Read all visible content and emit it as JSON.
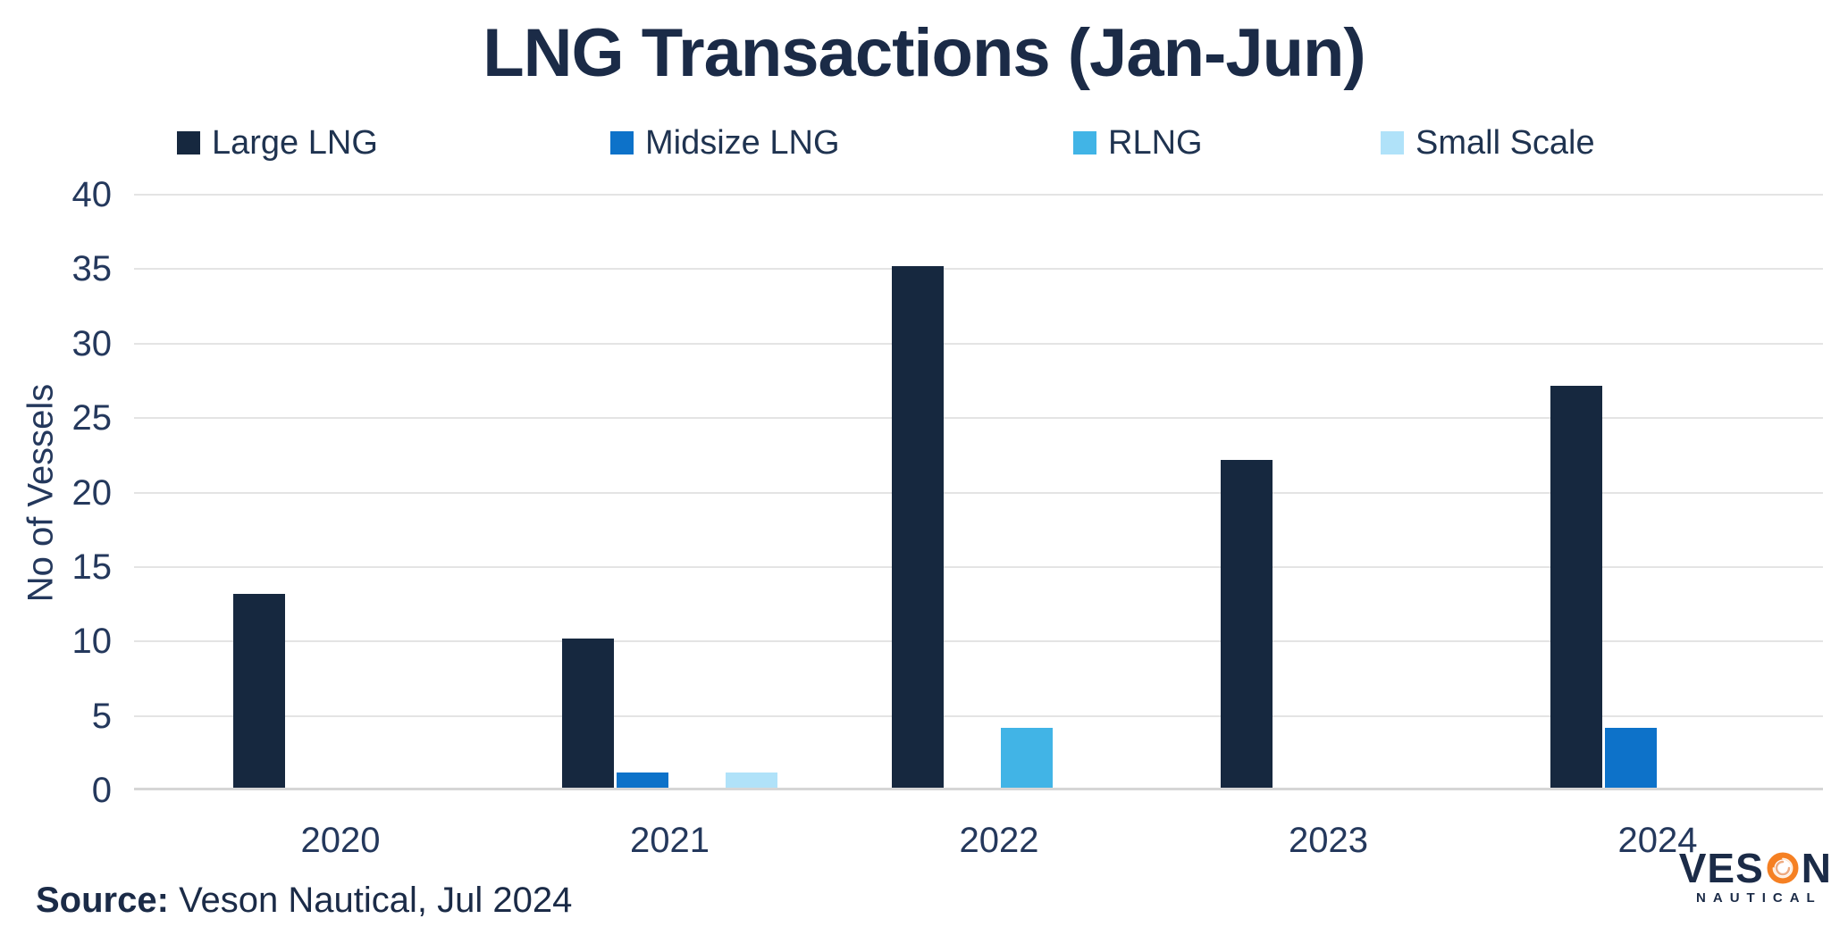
{
  "chart_data": {
    "type": "bar",
    "title": "LNG Transactions (Jan-Jun)",
    "xlabel": "",
    "ylabel": "No of Vessels",
    "ylim": [
      0,
      40
    ],
    "ytick_step": 5,
    "yticks": [
      0,
      5,
      10,
      15,
      20,
      25,
      30,
      35,
      40
    ],
    "grid": true,
    "legend_position": "top",
    "categories": [
      "2020",
      "2021",
      "2022",
      "2023",
      "2024"
    ],
    "series": [
      {
        "name": "Large LNG",
        "color": "#16283F",
        "values": [
          13,
          10,
          35,
          22,
          27
        ]
      },
      {
        "name": "Midsize LNG",
        "color": "#0D72C9",
        "values": [
          0,
          1,
          0,
          0,
          4
        ]
      },
      {
        "name": "RLNG",
        "color": "#41B4E6",
        "values": [
          0,
          0,
          4,
          0,
          0
        ]
      },
      {
        "name": "Small Scale",
        "color": "#B0E2F9",
        "values": [
          0,
          1,
          0,
          0,
          0
        ]
      }
    ]
  },
  "source": {
    "label": "Source:",
    "text": "Veson Nautical, Jul 2024"
  },
  "logo": {
    "brand_pre": "VES",
    "brand_post": "N",
    "subtext": "NAUTICAL",
    "swirl_color": "#F58023",
    "text_color": "#1B2B47"
  },
  "colors": {
    "title_text": "#1B2B47",
    "axis_text": "#24385C",
    "legend_text": "#1F3350",
    "gridline": "#E4E4E4",
    "baseline": "#D6D6D6",
    "background": "#FFFFFF"
  }
}
